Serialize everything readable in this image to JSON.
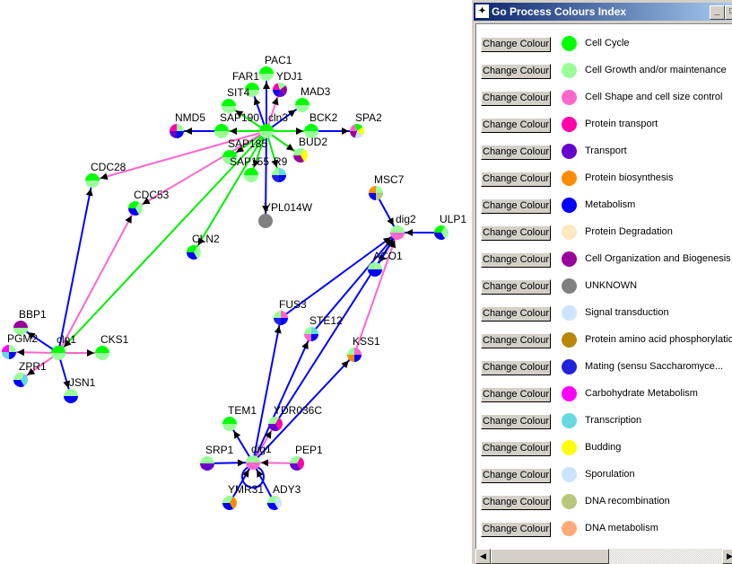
{
  "window": {
    "title": "Go Process Colours Index",
    "button_label": "Change Colour",
    "minimize": "_",
    "maximize": "□"
  },
  "processes": [
    {
      "label": "Cell Cycle",
      "color": "#00ff00"
    },
    {
      "label": "Cell Growth and/or maintenance",
      "color": "#99ff99"
    },
    {
      "label": "Cell Shape and cell size control",
      "color": "#ff66cc"
    },
    {
      "label": "Protein transport",
      "color": "#ff00aa"
    },
    {
      "label": "Transport",
      "color": "#6600cc"
    },
    {
      "label": "Protein biosynthesis",
      "color": "#ff8c00"
    },
    {
      "label": "Metabolism",
      "color": "#0000ff"
    },
    {
      "label": "Protein Degradation",
      "color": "#fde8c0"
    },
    {
      "label": "Cell Organization and Biogenesis",
      "color": "#990099"
    },
    {
      "label": "UNKNOWN",
      "color": "#808080"
    },
    {
      "label": "Signal transduction",
      "color": "#cce4ff"
    },
    {
      "label": "Protein amino acid phosphorylation",
      "color": "#b8860b"
    },
    {
      "label": "Mating (sensu Saccharomyce...",
      "color": "#2222dd"
    },
    {
      "label": "Carbohydrate Metabolism",
      "color": "#ff00ff"
    },
    {
      "label": "Transcription",
      "color": "#66d9e0"
    },
    {
      "label": "Budding",
      "color": "#ffff00"
    },
    {
      "label": "Sporulation",
      "color": "#c8e4ff"
    },
    {
      "label": "DNA recombination",
      "color": "#b8c77a"
    },
    {
      "label": "DNA metabolism",
      "color": "#ffaa77"
    }
  ],
  "network": {
    "nodes": [
      {
        "id": "PAC1",
        "colors": [
          "#00ff00",
          "#99ff99"
        ]
      },
      {
        "id": "FAR1",
        "colors": [
          "#00ff00",
          "#99ff99"
        ]
      },
      {
        "id": "YDJ1",
        "colors": [
          "#ff00aa",
          "#99ff99",
          "#990099",
          "#6600cc",
          "#0000ff"
        ]
      },
      {
        "id": "SIT4",
        "colors": [
          "#00ff00",
          "#99ff99"
        ]
      },
      {
        "id": "MAD3",
        "colors": [
          "#00ff00",
          "#99ff99"
        ]
      },
      {
        "id": "cln3",
        "colors": [
          "#00ff00",
          "#99ff99"
        ]
      },
      {
        "id": "SAP190",
        "colors": [
          "#00ff00",
          "#99ff99"
        ]
      },
      {
        "id": "NMD5",
        "colors": [
          "#ff00aa",
          "#99ff99",
          "#0000ff",
          "#6600cc"
        ]
      },
      {
        "id": "BCK2",
        "colors": [
          "#00ff00",
          "#99ff99"
        ]
      },
      {
        "id": "SPA2",
        "colors": [
          "#ff66cc",
          "#00ff00",
          "#ffff00",
          "#cce4ff",
          "#990099"
        ]
      },
      {
        "id": "SAP185",
        "colors": [
          "#00ff00",
          "#99ff99"
        ]
      },
      {
        "id": "BUD2",
        "colors": [
          "#99ff99",
          "#ffff00",
          "#990099"
        ]
      },
      {
        "id": "SAP155",
        "colors": [
          "#00ff00",
          "#99ff99"
        ]
      },
      {
        "id": "R9",
        "colors": [
          "#99ff99",
          "#66d9e0",
          "#0000ff",
          "#2222dd"
        ]
      },
      {
        "id": "YPL014W",
        "colors": [
          "#808080"
        ]
      },
      {
        "id": "CDC28",
        "colors": [
          "#00ff00",
          "#99ff99"
        ]
      },
      {
        "id": "CDC53",
        "colors": [
          "#00ff00",
          "#99ff99",
          "#0000ff"
        ]
      },
      {
        "id": "CLN2",
        "colors": [
          "#00ff00",
          "#99ff99",
          "#0000ff"
        ]
      },
      {
        "id": "cln1",
        "colors": [
          "#00ff00",
          "#99ff99"
        ]
      },
      {
        "id": "BBP1",
        "colors": [
          "#990099",
          "#99ff99"
        ]
      },
      {
        "id": "PGM2",
        "colors": [
          "#ff00ff",
          "#99ff99",
          "#0000ff",
          "#66d9e0"
        ]
      },
      {
        "id": "ZPR1",
        "colors": [
          "#99ff99",
          "#66d9e0",
          "#0000ff"
        ]
      },
      {
        "id": "JSN1",
        "colors": [
          "#99ff99",
          "#0000ff"
        ]
      },
      {
        "id": "CKS1",
        "colors": [
          "#00ff00",
          "#99ff99"
        ]
      },
      {
        "id": "MSC7",
        "colors": [
          "#ff8c00",
          "#99ff99",
          "#b8c77a",
          "#0000ff"
        ]
      },
      {
        "id": "dig2",
        "colors": [
          "#99ff99",
          "#ff66cc"
        ]
      },
      {
        "id": "ULP1",
        "colors": [
          "#00ff00",
          "#99ff99",
          "#0000ff"
        ]
      },
      {
        "id": "ACO1",
        "colors": [
          "#99ff99",
          "#0000ff"
        ]
      },
      {
        "id": "FUS3",
        "colors": [
          "#99ff99",
          "#ff66cc",
          "#0000ff",
          "#2222dd"
        ]
      },
      {
        "id": "STE12",
        "colors": [
          "#99ff99",
          "#66d9e0",
          "#0000ff",
          "#ff66cc"
        ]
      },
      {
        "id": "KSS1",
        "colors": [
          "#99ff99",
          "#ff66cc",
          "#0000ff",
          "#ff8c00"
        ]
      },
      {
        "id": "YDR036C",
        "colors": [
          "#99ff99",
          "#ff00aa",
          "#6600cc"
        ]
      },
      {
        "id": "TEM1",
        "colors": [
          "#00ff00",
          "#99ff99"
        ]
      },
      {
        "id": "dig1",
        "colors": [
          "#99ff99",
          "#ff66cc"
        ]
      },
      {
        "id": "SRP1",
        "colors": [
          "#99ff99",
          "#6600cc"
        ]
      },
      {
        "id": "PEP1",
        "colors": [
          "#99ff99",
          "#ff00aa",
          "#6600cc"
        ]
      },
      {
        "id": "YMR31",
        "colors": [
          "#99ff99",
          "#ff8c00",
          "#0000ff"
        ]
      },
      {
        "id": "ADY3",
        "colors": [
          "#99ff99",
          "#cce4ff",
          "#0000ff"
        ]
      }
    ],
    "edges": [
      [
        "cln3",
        "PAC1",
        "#0000ff"
      ],
      [
        "cln3",
        "FAR1",
        "#0000ff"
      ],
      [
        "cln3",
        "YDJ1",
        "#ff66cc"
      ],
      [
        "cln3",
        "SIT4",
        "#00ee00"
      ],
      [
        "cln3",
        "MAD3",
        "#0000ff"
      ],
      [
        "cln3",
        "SAP190",
        "#00ee00"
      ],
      [
        "SAP190",
        "NMD5",
        "#0000ff"
      ],
      [
        "cln3",
        "BCK2",
        "#00ee00"
      ],
      [
        "BCK2",
        "SPA2",
        "#0000ff"
      ],
      [
        "cln3",
        "BUD2",
        "#00ee00"
      ],
      [
        "cln3",
        "SAP185",
        "#00ee00"
      ],
      [
        "cln3",
        "SAP155",
        "#00ee00"
      ],
      [
        "cln3",
        "R9",
        "#00ee00"
      ],
      [
        "cln3",
        "YPL014W",
        "#0000ff"
      ],
      [
        "cln3",
        "CDC28",
        "#ff66cc"
      ],
      [
        "cln3",
        "CDC53",
        "#ff66cc"
      ],
      [
        "cln3",
        "CLN2",
        "#00ee00"
      ],
      [
        "cln3",
        "cln1",
        "#00ee00"
      ],
      [
        "cln1",
        "CDC28",
        "#0000ff"
      ],
      [
        "cln1",
        "CDC53",
        "#ff66cc"
      ],
      [
        "cln1",
        "BBP1",
        "#0000ff"
      ],
      [
        "cln1",
        "PGM2",
        "#ff66cc"
      ],
      [
        "cln1",
        "ZPR1",
        "#ff66cc"
      ],
      [
        "cln1",
        "JSN1",
        "#0000ff"
      ],
      [
        "cln1",
        "CKS1",
        "#ff66cc"
      ],
      [
        "MSC7",
        "dig2",
        "#0000ff"
      ],
      [
        "ULP1",
        "dig2",
        "#0000ff"
      ],
      [
        "dig2",
        "ACO1",
        "#0000ff"
      ],
      [
        "FUS3",
        "dig2",
        "#0000ff"
      ],
      [
        "STE12",
        "dig2",
        "#0000ff"
      ],
      [
        "KSS1",
        "dig2",
        "#ff66cc"
      ],
      [
        "YDR036C",
        "dig2",
        "#0000ff"
      ],
      [
        "dig1",
        "TEM1",
        "#0000ff"
      ],
      [
        "dig1",
        "FUS3",
        "#0000ff"
      ],
      [
        "dig1",
        "STE12",
        "#0000ff"
      ],
      [
        "dig1",
        "KSS1",
        "#0000ff"
      ],
      [
        "dig1",
        "YDR036C",
        "#ff66cc"
      ],
      [
        "SRP1",
        "dig1",
        "#0000ff"
      ],
      [
        "PEP1",
        "dig1",
        "#ff66cc"
      ],
      [
        "YMR31",
        "dig1",
        "#0000ff"
      ],
      [
        "ADY3",
        "dig1",
        "#0000ff"
      ]
    ]
  }
}
